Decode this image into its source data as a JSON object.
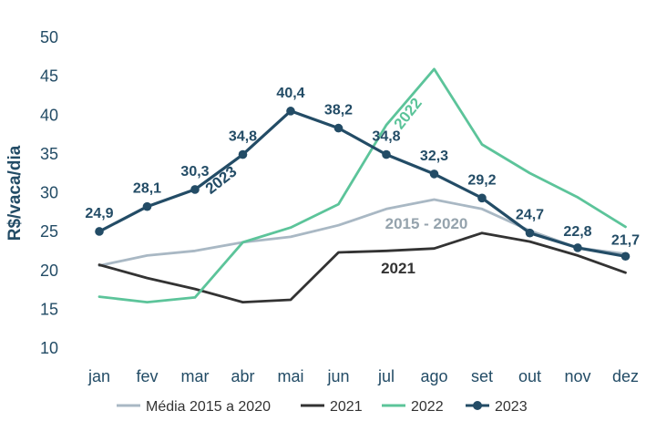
{
  "chart_data": {
    "type": "line",
    "ylabel": "R$/vaca/dia",
    "ylim": [
      10,
      50
    ],
    "yticks": [
      10,
      15,
      20,
      25,
      30,
      35,
      40,
      45,
      50
    ],
    "categories": [
      "jan",
      "fev",
      "mar",
      "abr",
      "mai",
      "jun",
      "jul",
      "ago",
      "set",
      "out",
      "nov",
      "dez"
    ],
    "grid": false,
    "legend_position": "bottom",
    "series": [
      {
        "name": "Média 2015 a 2020",
        "color": "#a9b8c4",
        "markers": false,
        "inline_label": "2015 - 2020",
        "values": [
          20.5,
          21.8,
          22.4,
          23.5,
          24.2,
          25.7,
          27.8,
          29.0,
          27.8,
          25.0,
          22.8,
          22.0
        ]
      },
      {
        "name": "2021",
        "color": "#333333",
        "markers": false,
        "inline_label": "2021",
        "values": [
          20.6,
          18.9,
          17.5,
          15.8,
          16.1,
          22.2,
          22.4,
          22.7,
          24.7,
          23.6,
          21.8,
          19.6
        ]
      },
      {
        "name": "2022",
        "color": "#5cc49a",
        "markers": false,
        "inline_label": "2022",
        "values": [
          16.5,
          15.8,
          16.4,
          23.5,
          25.4,
          28.4,
          38.6,
          45.8,
          36.1,
          32.4,
          29.3,
          25.5
        ]
      },
      {
        "name": "2023",
        "color": "#234c66",
        "markers": true,
        "inline_label": "2023",
        "values": [
          24.9,
          28.1,
          30.3,
          34.8,
          40.4,
          38.2,
          34.8,
          32.3,
          29.2,
          24.7,
          22.8,
          21.7
        ],
        "data_labels": [
          "24,9",
          "28,1",
          "30,3",
          "34,8",
          "40,4",
          "38,2",
          "34,8",
          "32,3",
          "29,2",
          "24,7",
          "22,8",
          "21,7"
        ]
      }
    ]
  }
}
